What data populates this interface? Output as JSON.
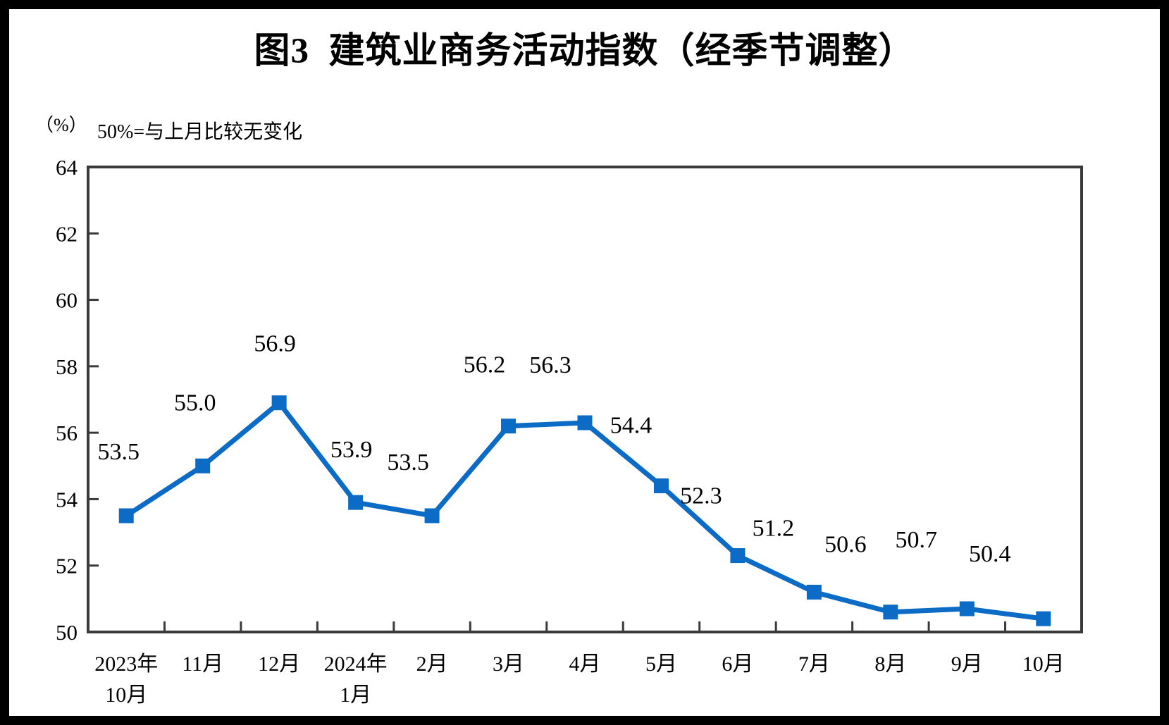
{
  "chart": {
    "title": "图3  建筑业商务活动指数（经季节调整）",
    "unit_label": "（%）",
    "subtitle": "50%=与上月比较无变化"
  },
  "chart_data": {
    "type": "line",
    "title": "图3 建筑业商务活动指数（经季节调整）",
    "subtitle": "50%=与上月比较无变化",
    "ylabel": "（%）",
    "xlabel": "",
    "categories": [
      [
        "2023年",
        "10月"
      ],
      [
        "11月"
      ],
      [
        "12月"
      ],
      [
        "2024年",
        "1月"
      ],
      [
        "2月"
      ],
      [
        "3月"
      ],
      [
        "4月"
      ],
      [
        "5月"
      ],
      [
        "6月"
      ],
      [
        "7月"
      ],
      [
        "8月"
      ],
      [
        "9月"
      ],
      [
        "10月"
      ]
    ],
    "values": [
      53.5,
      55.0,
      56.9,
      53.9,
      53.5,
      56.2,
      56.3,
      54.4,
      52.3,
      51.2,
      50.6,
      50.7,
      50.4
    ],
    "point_labels": [
      "53.5",
      "55.0",
      "56.9",
      "53.9",
      "53.5",
      "56.2",
      "56.3",
      "54.4",
      "52.3",
      "51.2",
      "50.6",
      "50.7",
      "50.4"
    ],
    "ylim": [
      50,
      64
    ],
    "ytick_step": 2,
    "ytick_labels": [
      "50",
      "52",
      "54",
      "56",
      "58",
      "60",
      "62",
      "64"
    ],
    "grid": false,
    "legend": false,
    "marker": "square",
    "line_color": "#0c6bc5",
    "axis_color": "#3a3a3a",
    "text_color": "#000000"
  }
}
